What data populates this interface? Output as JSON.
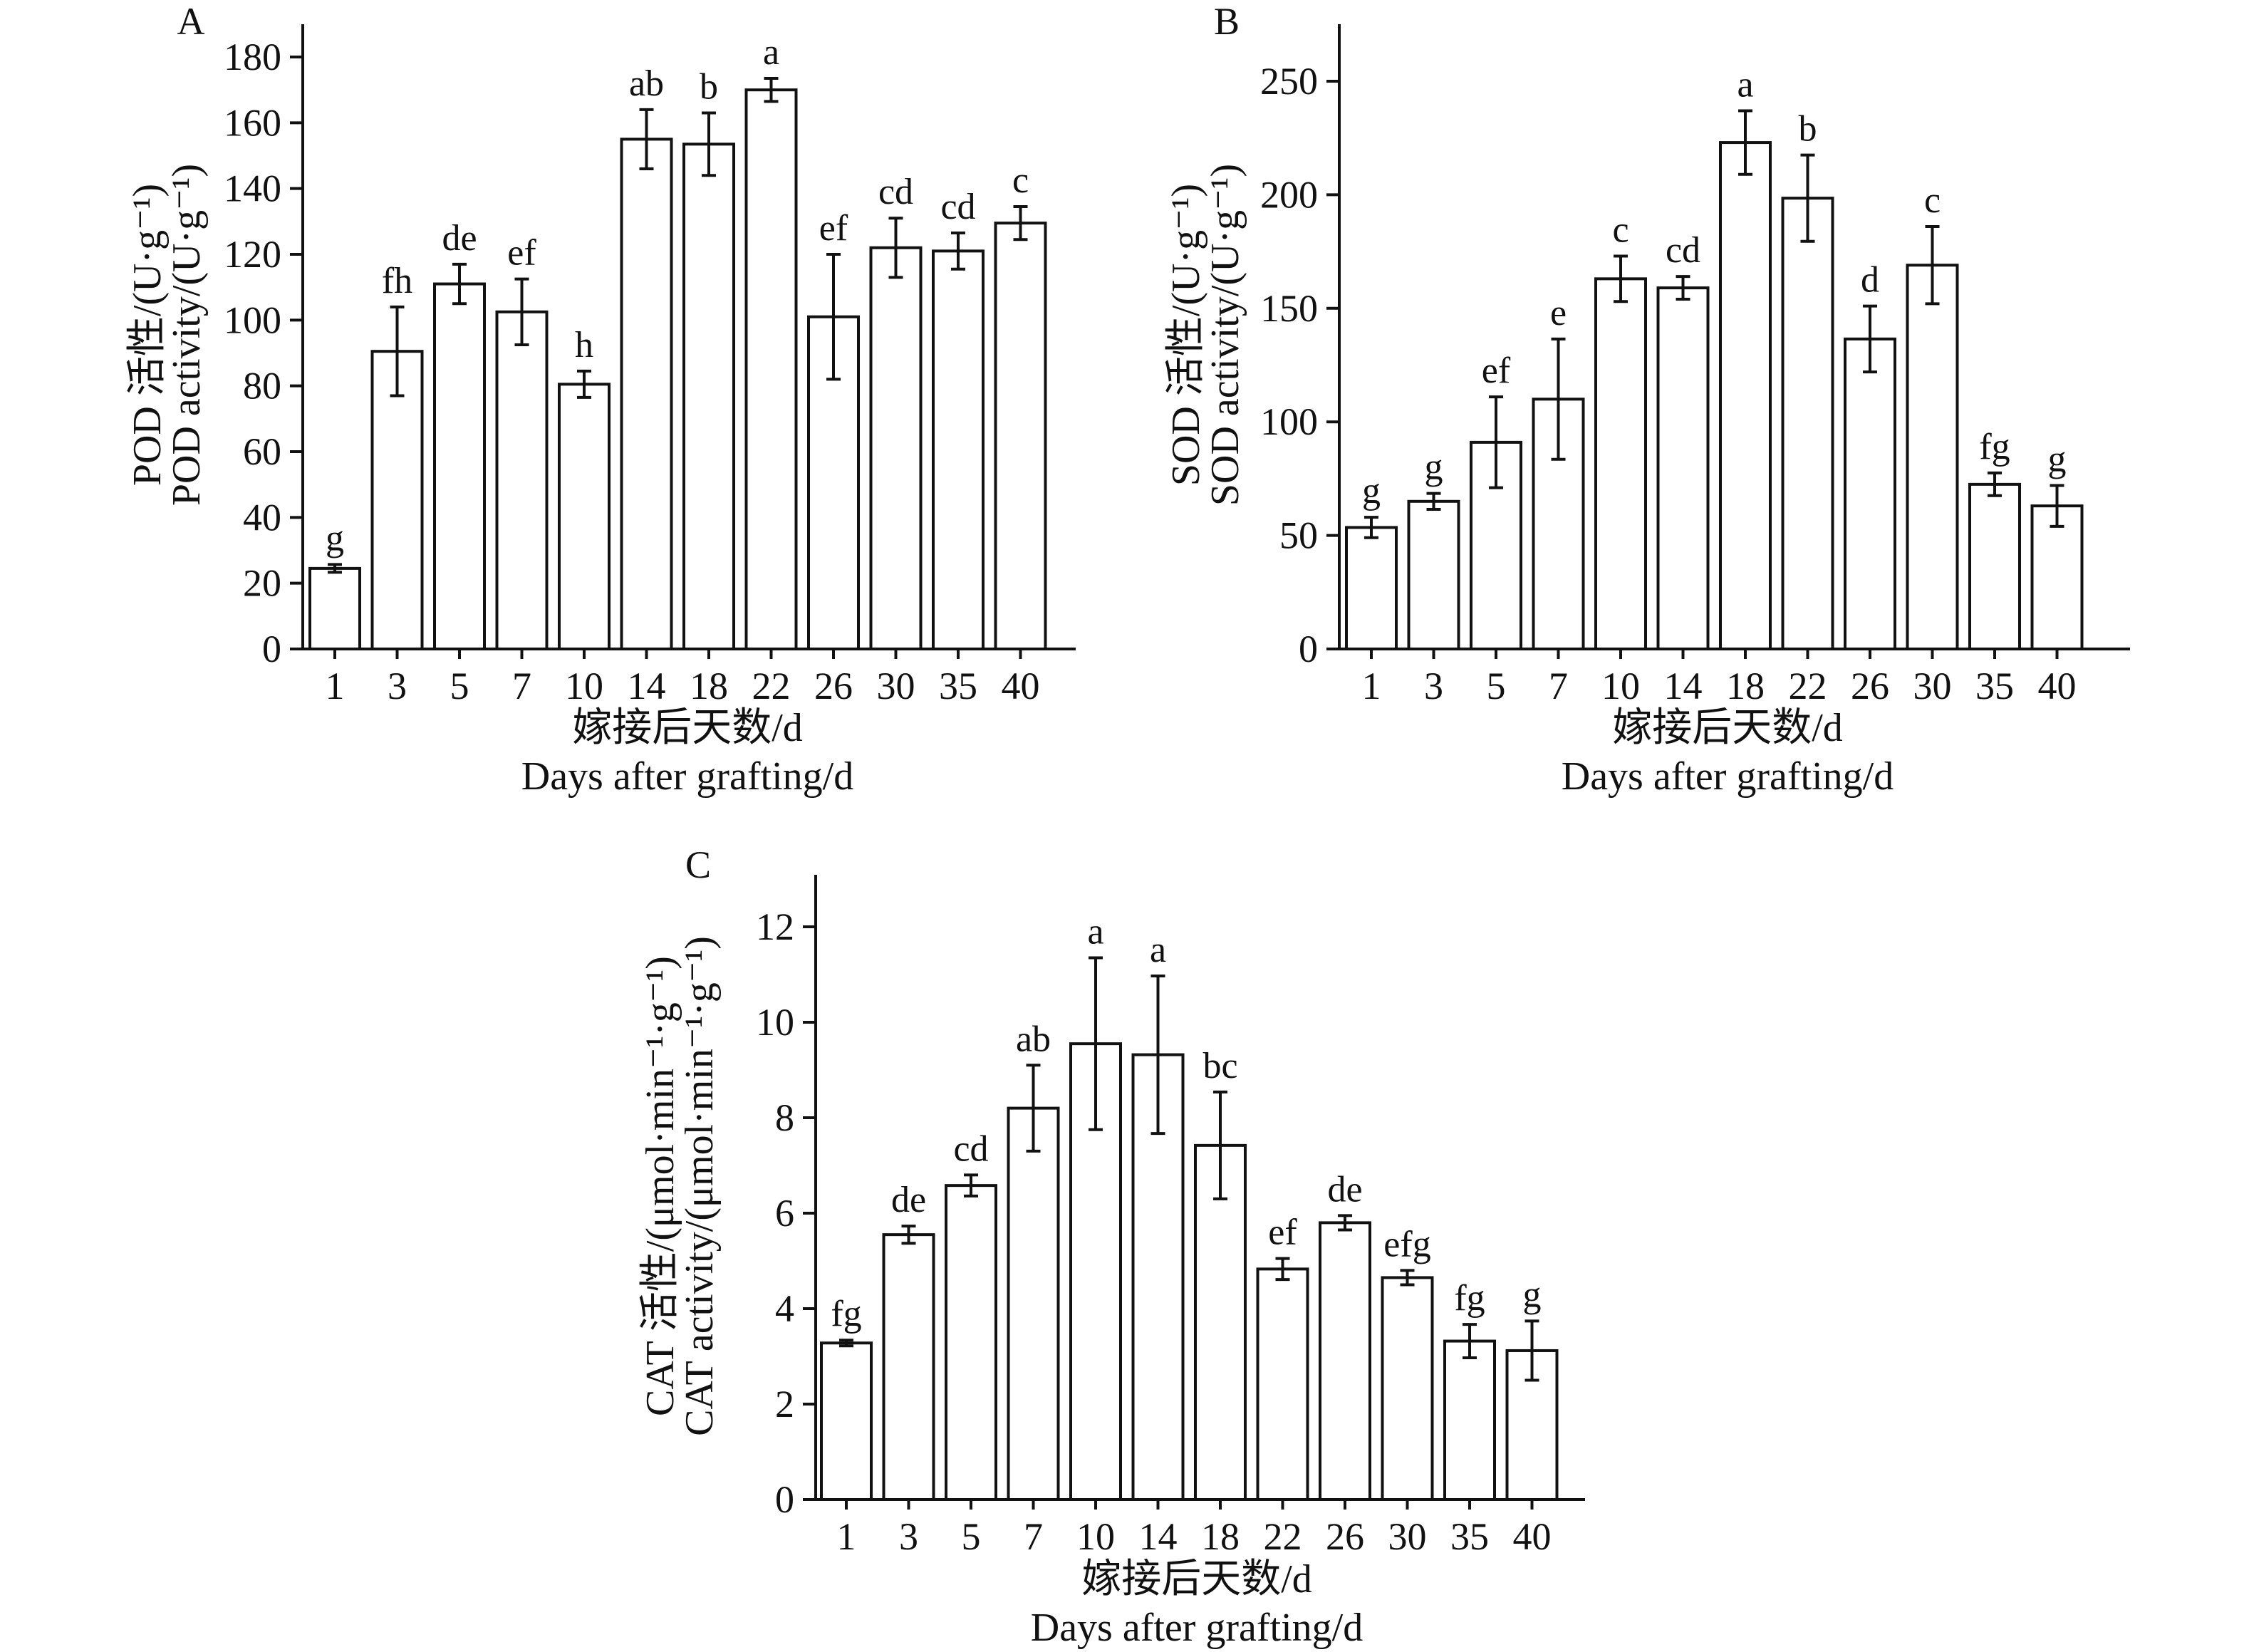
{
  "chart_data": [
    {
      "panel": "A",
      "type": "bar",
      "categories": [
        "1",
        "3",
        "5",
        "7",
        "10",
        "14",
        "18",
        "22",
        "26",
        "30",
        "35",
        "40"
      ],
      "values": [
        24.5,
        90.5,
        111,
        102.5,
        80.5,
        155,
        153.5,
        170,
        101,
        122,
        121,
        129.5
      ],
      "errors": [
        1.2,
        13.5,
        6,
        10,
        4,
        9,
        9.5,
        3.5,
        19,
        9,
        5.5,
        5
      ],
      "significance": [
        "g",
        "fh",
        "de",
        "ef",
        "h",
        "ab",
        "b",
        "a",
        "ef",
        "cd",
        "cd",
        "c"
      ],
      "ylabel_cn": "POD 活性/(U·g⁻¹)",
      "ylabel_en": "POD activity/(U·g⁻¹)",
      "xlabel_cn": "嫁接后天数/d",
      "xlabel_en": "Days after grafting/d",
      "ylim": [
        0,
        190
      ],
      "yticks": [
        0,
        20,
        40,
        60,
        80,
        100,
        120,
        140,
        160,
        180
      ],
      "grid": false
    },
    {
      "panel": "B",
      "type": "bar",
      "categories": [
        "1",
        "3",
        "5",
        "7",
        "10",
        "14",
        "18",
        "22",
        "26",
        "30",
        "35",
        "40"
      ],
      "values": [
        53.5,
        65,
        91,
        110,
        163,
        159,
        223,
        198.5,
        136.5,
        169,
        72.5,
        63
      ],
      "errors": [
        4.5,
        3.5,
        20,
        26.5,
        10,
        5,
        14,
        19,
        14.5,
        17,
        5,
        9
      ],
      "significance": [
        "g",
        "g",
        "ef",
        "e",
        "c",
        "cd",
        "a",
        "b",
        "d",
        "c",
        "fg",
        "g"
      ],
      "ylabel_cn": "SOD 活性/(U·g⁻¹)",
      "ylabel_en": "SOD activity/(U·g⁻¹)",
      "xlabel_cn": "嫁接后天数/d",
      "xlabel_en": "Days after grafting/d",
      "ylim": [
        0,
        275
      ],
      "yticks": [
        0,
        50,
        100,
        150,
        200,
        250
      ],
      "grid": false
    },
    {
      "panel": "C",
      "type": "bar",
      "categories": [
        "1",
        "3",
        "5",
        "7",
        "10",
        "14",
        "18",
        "22",
        "26",
        "30",
        "35",
        "40"
      ],
      "values": [
        3.28,
        5.55,
        6.58,
        8.2,
        9.55,
        9.32,
        7.42,
        4.83,
        5.8,
        4.65,
        3.32,
        3.12
      ],
      "errors": [
        0.06,
        0.18,
        0.22,
        0.9,
        1.8,
        1.65,
        1.12,
        0.22,
        0.15,
        0.15,
        0.35,
        0.62
      ],
      "significance": [
        "fg",
        "de",
        "cd",
        "ab",
        "a",
        "a",
        "bc",
        "ef",
        "de",
        "efg",
        "fg",
        "g"
      ],
      "ylabel_cn": "CAT 活性/(μmol·min⁻¹·g⁻¹)",
      "ylabel_en": "CAT activity/(μmol·min⁻¹·g⁻¹)",
      "xlabel_cn": "嫁接后天数/d",
      "xlabel_en": "Days after grafting/d",
      "ylim": [
        0,
        13
      ],
      "yticks": [
        0,
        2,
        4,
        6,
        8,
        10,
        12
      ],
      "grid": false
    }
  ]
}
